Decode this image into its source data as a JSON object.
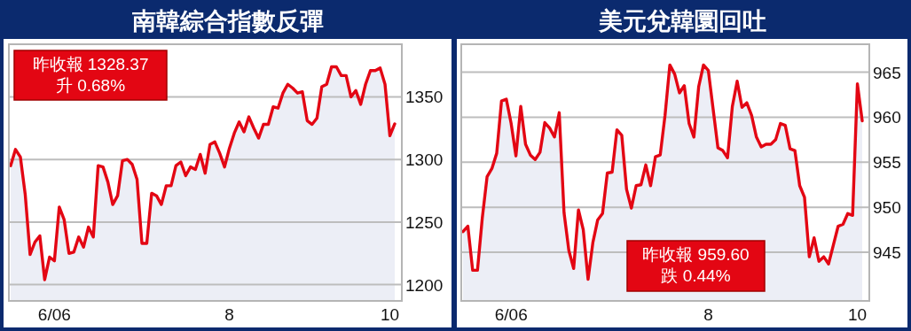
{
  "chart_data": [
    {
      "type": "area",
      "title": "南韓綜合指數反彈",
      "annotations": [
        "昨收報 1328.37\n升 0.68%"
      ],
      "ylim": [
        1187,
        1392
      ],
      "yticks": [
        1200,
        1250,
        1300,
        1350
      ],
      "grid": "y",
      "categories": [
        null,
        null,
        null,
        null,
        null,
        null,
        null,
        null,
        null,
        "6/06",
        null,
        null,
        null,
        null,
        null,
        null,
        null,
        null,
        null,
        null,
        null,
        null,
        null,
        null,
        null,
        null,
        null,
        null,
        null,
        null,
        null,
        null,
        null,
        null,
        null,
        null,
        null,
        null,
        null,
        null,
        null,
        null,
        null,
        null,
        null,
        "8",
        null,
        null,
        null,
        null,
        null,
        null,
        null,
        null,
        null,
        null,
        null,
        null,
        null,
        null,
        null,
        null,
        null,
        null,
        null,
        null,
        null,
        null,
        null,
        null,
        null,
        null,
        null,
        null,
        null,
        null,
        null,
        null,
        "10",
        null
      ],
      "series": [
        {
          "color": "#e30613",
          "values": [
            1295,
            1308,
            1302,
            1272,
            1224,
            1234,
            1239,
            1204,
            1222,
            1219,
            1262,
            1252,
            1225,
            1226,
            1238,
            1230,
            1246,
            1238,
            1295,
            1294,
            1282,
            1264,
            1271,
            1299,
            1300,
            1296,
            1284,
            1233,
            1233,
            1273,
            1271,
            1264,
            1279,
            1279,
            1295,
            1298,
            1287,
            1294,
            1292,
            1304,
            1289,
            1312,
            1314,
            1305,
            1294,
            1309,
            1321,
            1330,
            1322,
            1334,
            1325,
            1317,
            1328,
            1328,
            1342,
            1341,
            1353,
            1360,
            1357,
            1353,
            1354,
            1331,
            1328,
            1333,
            1358,
            1360,
            1374,
            1374,
            1367,
            1367,
            1350,
            1355,
            1344,
            1360,
            1371,
            1371,
            1373,
            1360,
            1319,
            1328.4
          ]
        }
      ]
    },
    {
      "type": "area",
      "title": "美元兌韓圜回吐",
      "annotations": [
        "昨收報 959.60\n跌 0.44%"
      ],
      "ylim": [
        939.6,
        968.1
      ],
      "yticks": [
        945,
        950,
        955,
        960,
        965
      ],
      "grid": "y",
      "categories": [
        null,
        null,
        null,
        null,
        null,
        null,
        null,
        null,
        null,
        null,
        "6/06",
        null,
        null,
        null,
        null,
        null,
        null,
        null,
        null,
        null,
        null,
        null,
        null,
        null,
        null,
        null,
        null,
        null,
        null,
        null,
        null,
        null,
        null,
        null,
        null,
        null,
        null,
        null,
        null,
        null,
        null,
        null,
        null,
        null,
        null,
        null,
        null,
        null,
        null,
        null,
        null,
        "8",
        null,
        null,
        null,
        null,
        null,
        null,
        null,
        null,
        null,
        null,
        null,
        null,
        null,
        null,
        null,
        null,
        null,
        null,
        null,
        null,
        null,
        null,
        null,
        null,
        null,
        null,
        null,
        null,
        null,
        null,
        "10",
        null
      ],
      "series": [
        {
          "color": "#e30613",
          "values": [
            947.3,
            947.9,
            943.0,
            943.0,
            948.8,
            953.4,
            954.3,
            956.0,
            961.8,
            962.0,
            959.3,
            955.7,
            961.2,
            957.0,
            955.8,
            955.3,
            956.1,
            959.4,
            958.8,
            957.8,
            960.5,
            949.4,
            945.2,
            943.2,
            949.7,
            947.5,
            942.0,
            946.1,
            948.6,
            949.3,
            953.8,
            953.9,
            958.6,
            958.0,
            952.0,
            949.9,
            952.4,
            952.5,
            954.7,
            952.4,
            955.6,
            955.8,
            960.2,
            965.8,
            964.8,
            962.7,
            963.5,
            959.3,
            957.8,
            963.4,
            965.8,
            965.2,
            960.9,
            956.6,
            956.3,
            955.5,
            961.2,
            964.0,
            961.1,
            961.6,
            960.2,
            957.8,
            956.7,
            957.0,
            957.0,
            957.5,
            959.3,
            959.1,
            956.5,
            956.3,
            952.4,
            951.1,
            944.5,
            946.6,
            944.0,
            944.5,
            943.7,
            945.8,
            947.9,
            948.1,
            949.3,
            949.1,
            963.7,
            959.6
          ]
        }
      ]
    }
  ]
}
